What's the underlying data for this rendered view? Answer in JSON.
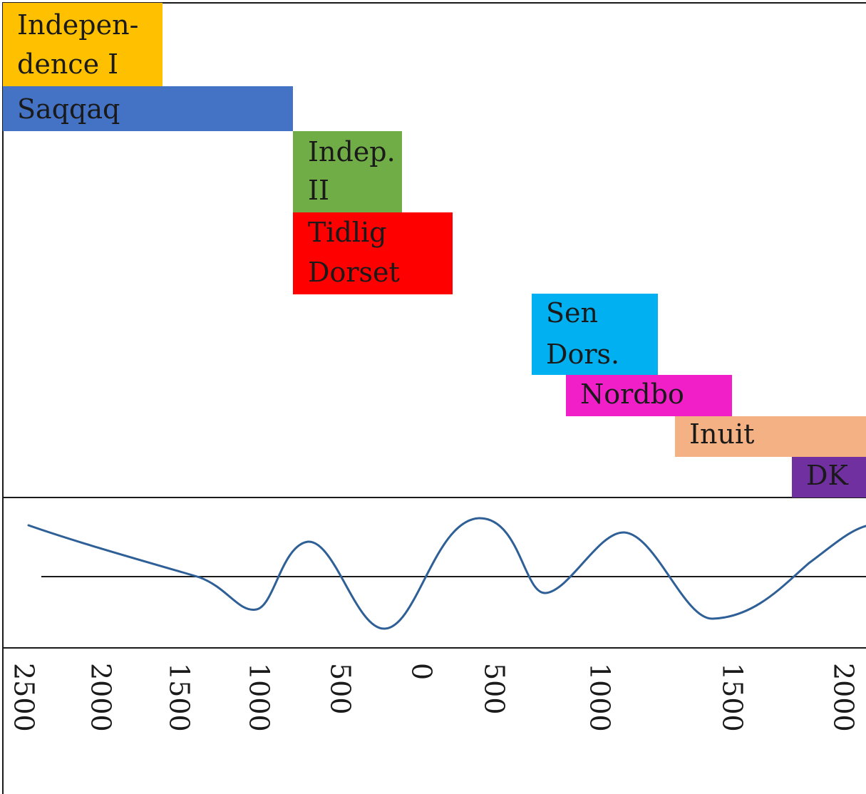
{
  "periods": [
    {
      "id": "independence-i",
      "lines": [
        "Indepen-",
        "dence I"
      ],
      "color": "#ffc000"
    },
    {
      "id": "saqqaq",
      "lines": [
        "Saqqaq"
      ],
      "color": "#4472c4"
    },
    {
      "id": "indep-ii",
      "lines": [
        "Indep.",
        "II"
      ],
      "color": "#70ad47"
    },
    {
      "id": "tidlig-dorset",
      "lines": [
        "Tidlig",
        "Dorset"
      ],
      "color": "#ff0000"
    },
    {
      "id": "sen-dors",
      "lines": [
        "Sen",
        "Dors."
      ],
      "color": "#00b0f0"
    },
    {
      "id": "nordbo",
      "lines": [
        "Nordbo"
      ],
      "color": "#f01fc8"
    },
    {
      "id": "inuit",
      "lines": [
        "Inuit"
      ],
      "color": "#f4b183"
    },
    {
      "id": "dk",
      "lines": [
        "DK"
      ],
      "color": "#7030a0"
    }
  ],
  "axis_ticks": [
    "2500",
    "2000",
    "1500",
    "1000",
    "500",
    "0",
    "500",
    "1000",
    "1500",
    "2000"
  ],
  "colors": {
    "curve": "#2e5f96",
    "frame": "#1a1a1a"
  }
}
